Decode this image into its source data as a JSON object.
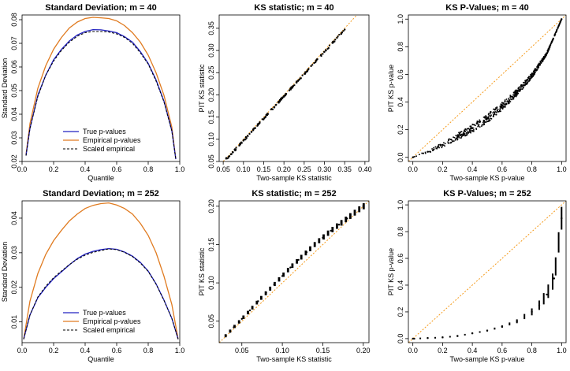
{
  "figure": {
    "panels": [
      {
        "title": "Standard Deviation; m = 40",
        "xlabel": "Quantile",
        "ylabel": "Standard Deviation",
        "xticks": [
          0.0,
          0.2,
          0.4,
          0.6,
          0.8,
          1.0
        ],
        "yticks": [
          0.02,
          0.03,
          0.04,
          0.05,
          0.06,
          0.07,
          0.08
        ],
        "legend": [
          "True p-values",
          "Empirical p-values",
          "Scaled empirical"
        ]
      },
      {
        "title": "KS statistic; m = 40",
        "xlabel": "Two-sample KS statistic",
        "ylabel": "PIT KS statistic",
        "xticks": [
          0.05,
          0.1,
          0.15,
          0.2,
          0.25,
          0.3,
          0.35,
          0.4
        ],
        "yticks": [
          0.05,
          0.1,
          0.15,
          0.2,
          0.25,
          0.3,
          0.35
        ]
      },
      {
        "title": "KS P-Values; m = 40",
        "xlabel": "Two-sample KS p-value",
        "ylabel": "PIT KS p-value",
        "xticks": [
          0.0,
          0.2,
          0.4,
          0.6,
          0.8,
          1.0
        ],
        "yticks": [
          0.0,
          0.2,
          0.4,
          0.6,
          0.8,
          1.0
        ]
      },
      {
        "title": "Standard Deviation; m = 252",
        "xlabel": "Quantile",
        "ylabel": "Standard Deviation",
        "xticks": [
          0.0,
          0.2,
          0.4,
          0.6,
          0.8,
          1.0
        ],
        "yticks": [
          0.01,
          0.02,
          0.03,
          0.04
        ],
        "legend": [
          "True p-values",
          "Empirical p-values",
          "Scaled empirical"
        ]
      },
      {
        "title": "KS statistic; m = 252",
        "xlabel": "Two-sample KS statistic",
        "ylabel": "PIT KS statistic",
        "xticks": [
          0.05,
          0.1,
          0.15,
          0.2
        ],
        "yticks": [
          0.05,
          0.1,
          0.15,
          0.2
        ]
      },
      {
        "title": "KS P-Values; m = 252",
        "xlabel": "Two-sample KS p-value",
        "ylabel": "PIT KS p-value",
        "xticks": [
          0.0,
          0.2,
          0.4,
          0.6,
          0.8,
          1.0
        ],
        "yticks": [
          0.0,
          0.2,
          0.4,
          0.6,
          0.8,
          1.0
        ]
      }
    ]
  },
  "colors": {
    "true": "#2020c0",
    "empirical": "#e07b20",
    "scaled": "#000000",
    "reference": "#f59a1a"
  },
  "chart_data": [
    {
      "type": "line",
      "title": "Standard Deviation; m = 40",
      "xlabel": "Quantile",
      "ylabel": "Standard Deviation",
      "xlim": [
        0,
        1
      ],
      "ylim": [
        0.02,
        0.082
      ],
      "legend_position": "bottom-center",
      "series": [
        {
          "name": "True p-values",
          "x": [
            0.025,
            0.05,
            0.1,
            0.15,
            0.2,
            0.25,
            0.3,
            0.35,
            0.4,
            0.45,
            0.5,
            0.55,
            0.6,
            0.65,
            0.7,
            0.75,
            0.8,
            0.85,
            0.9,
            0.95,
            0.975
          ],
          "y": [
            0.0225,
            0.034,
            0.048,
            0.0565,
            0.063,
            0.0675,
            0.071,
            0.0735,
            0.075,
            0.0758,
            0.0757,
            0.0752,
            0.0745,
            0.0728,
            0.0705,
            0.0665,
            0.0615,
            0.0545,
            0.0455,
            0.033,
            0.021
          ]
        },
        {
          "name": "Empirical p-values",
          "x": [
            0.025,
            0.05,
            0.1,
            0.15,
            0.2,
            0.25,
            0.3,
            0.35,
            0.4,
            0.45,
            0.5,
            0.55,
            0.6,
            0.65,
            0.7,
            0.75,
            0.8,
            0.85,
            0.9,
            0.95,
            0.975
          ],
          "y": [
            0.023,
            0.036,
            0.051,
            0.0605,
            0.0675,
            0.0725,
            0.0765,
            0.079,
            0.0805,
            0.081,
            0.0808,
            0.0805,
            0.0795,
            0.0775,
            0.0745,
            0.0705,
            0.065,
            0.0575,
            0.048,
            0.0345,
            0.021
          ]
        },
        {
          "name": "Scaled empirical",
          "x": [
            0.025,
            0.05,
            0.1,
            0.15,
            0.2,
            0.25,
            0.3,
            0.35,
            0.4,
            0.45,
            0.5,
            0.55,
            0.6,
            0.65,
            0.7,
            0.75,
            0.8,
            0.85,
            0.9,
            0.95,
            0.975
          ],
          "y": [
            0.0225,
            0.034,
            0.0475,
            0.0565,
            0.0625,
            0.067,
            0.0705,
            0.073,
            0.0745,
            0.075,
            0.075,
            0.0748,
            0.074,
            0.0725,
            0.07,
            0.066,
            0.0612,
            0.054,
            0.0452,
            0.0328,
            0.021
          ]
        }
      ]
    },
    {
      "type": "scatter",
      "title": "KS statistic; m = 40",
      "xlabel": "Two-sample KS statistic",
      "ylabel": "PIT KS statistic",
      "xlim": [
        0.04,
        0.41
      ],
      "ylim": [
        0.05,
        0.38
      ],
      "reference_line": "y = x",
      "series": [
        {
          "name": "",
          "x": [
            0.06,
            0.08,
            0.1,
            0.12,
            0.14,
            0.16,
            0.18,
            0.2,
            0.22,
            0.24,
            0.26,
            0.28,
            0.3,
            0.32,
            0.35
          ],
          "y": [
            0.057,
            0.077,
            0.097,
            0.117,
            0.137,
            0.157,
            0.177,
            0.197,
            0.217,
            0.237,
            0.257,
            0.277,
            0.297,
            0.317,
            0.347
          ]
        }
      ]
    },
    {
      "type": "scatter",
      "title": "KS P-Values; m = 40",
      "xlabel": "Two-sample KS p-value",
      "ylabel": "PIT KS p-value",
      "xlim": [
        -0.03,
        1.03
      ],
      "ylim": [
        -0.03,
        1.03
      ],
      "reference_line": "y = x",
      "series": [
        {
          "name": "",
          "x": [
            0.0,
            0.1,
            0.2,
            0.3,
            0.4,
            0.5,
            0.6,
            0.7,
            0.8,
            0.9,
            1.0
          ],
          "y": [
            0.0,
            0.04,
            0.09,
            0.15,
            0.21,
            0.28,
            0.37,
            0.47,
            0.59,
            0.75,
            1.0
          ]
        }
      ]
    },
    {
      "type": "line",
      "title": "Standard Deviation; m = 252",
      "xlabel": "Quantile",
      "ylabel": "Standard Deviation",
      "xlim": [
        0,
        1
      ],
      "ylim": [
        0.004,
        0.045
      ],
      "legend_position": "bottom-center",
      "series": [
        {
          "name": "True p-values",
          "x": [
            0.01,
            0.05,
            0.1,
            0.15,
            0.2,
            0.25,
            0.3,
            0.35,
            0.4,
            0.45,
            0.5,
            0.55,
            0.6,
            0.65,
            0.7,
            0.75,
            0.8,
            0.85,
            0.9,
            0.95,
            0.99
          ],
          "y": [
            0.005,
            0.012,
            0.017,
            0.02,
            0.0225,
            0.0245,
            0.0265,
            0.0283,
            0.0296,
            0.0304,
            0.0309,
            0.0312,
            0.031,
            0.0302,
            0.029,
            0.0272,
            0.0247,
            0.021,
            0.0163,
            0.011,
            0.005
          ]
        },
        {
          "name": "Empirical p-values",
          "x": [
            0.01,
            0.05,
            0.1,
            0.15,
            0.2,
            0.25,
            0.3,
            0.35,
            0.4,
            0.45,
            0.5,
            0.55,
            0.6,
            0.65,
            0.7,
            0.75,
            0.8,
            0.85,
            0.9,
            0.95,
            0.99
          ],
          "y": [
            0.005,
            0.016,
            0.024,
            0.0295,
            0.0335,
            0.0365,
            0.0392,
            0.0412,
            0.0428,
            0.0437,
            0.0442,
            0.0444,
            0.0438,
            0.0428,
            0.0412,
            0.0385,
            0.035,
            0.03,
            0.0232,
            0.015,
            0.005
          ]
        },
        {
          "name": "Scaled empirical",
          "x": [
            0.01,
            0.05,
            0.1,
            0.15,
            0.2,
            0.25,
            0.3,
            0.35,
            0.4,
            0.45,
            0.5,
            0.55,
            0.6,
            0.65,
            0.7,
            0.75,
            0.8,
            0.85,
            0.9,
            0.95,
            0.99
          ],
          "y": [
            0.005,
            0.012,
            0.0172,
            0.0203,
            0.0228,
            0.0247,
            0.0266,
            0.0281,
            0.0293,
            0.0301,
            0.0306,
            0.0311,
            0.0309,
            0.0301,
            0.0289,
            0.027,
            0.0246,
            0.0209,
            0.0162,
            0.011,
            0.005
          ]
        }
      ]
    },
    {
      "type": "scatter",
      "title": "KS statistic; m = 252",
      "xlabel": "Two-sample KS statistic",
      "ylabel": "PIT KS statistic",
      "xlim": [
        0.022,
        0.207
      ],
      "ylim": [
        0.022,
        0.207
      ],
      "reference_line": "y = x",
      "series": [
        {
          "name": "",
          "x": [
            0.03,
            0.04,
            0.05,
            0.06,
            0.07,
            0.08,
            0.09,
            0.1,
            0.11,
            0.12,
            0.13,
            0.14,
            0.15,
            0.16,
            0.17,
            0.18,
            0.2
          ],
          "y": [
            0.031,
            0.042,
            0.053,
            0.064,
            0.076,
            0.087,
            0.098,
            0.109,
            0.12,
            0.13,
            0.14,
            0.15,
            0.159,
            0.168,
            0.176,
            0.184,
            0.2
          ]
        }
      ]
    },
    {
      "type": "scatter",
      "title": "KS P-Values; m = 252",
      "xlabel": "Two-sample KS p-value",
      "ylabel": "PIT KS p-value",
      "xlim": [
        -0.03,
        1.03
      ],
      "ylim": [
        -0.03,
        1.03
      ],
      "reference_line": "y = x",
      "series": [
        {
          "name": "",
          "x": [
            0.0,
            0.1,
            0.2,
            0.3,
            0.4,
            0.5,
            0.6,
            0.7,
            0.8,
            0.85,
            0.9,
            0.95,
            1.0
          ],
          "y": [
            0.0,
            0.005,
            0.01,
            0.02,
            0.04,
            0.06,
            0.09,
            0.13,
            0.2,
            0.25,
            0.33,
            0.45,
            0.9
          ]
        }
      ]
    }
  ]
}
